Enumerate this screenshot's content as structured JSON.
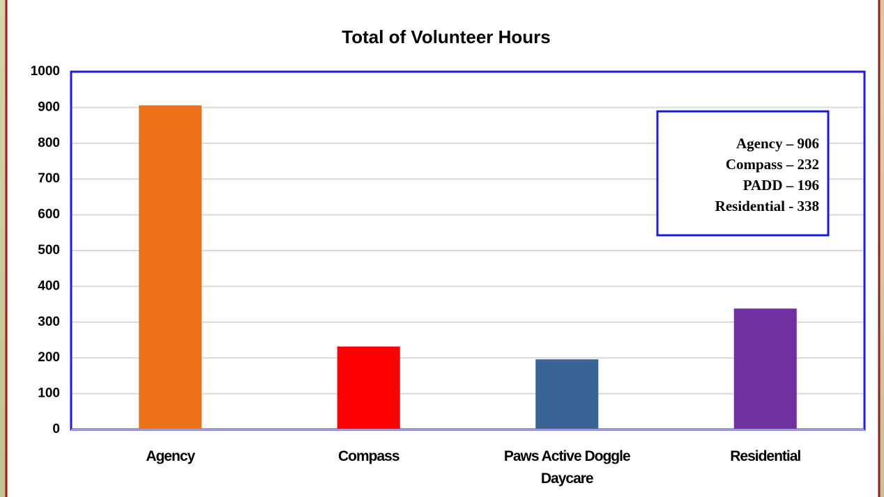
{
  "chart_data": {
    "type": "bar",
    "title": "Total of Volunteer Hours",
    "categories": [
      "Agency",
      "Compass",
      "Paws Active Doggle Daycare",
      "Residential"
    ],
    "values": [
      906,
      232,
      196,
      338
    ],
    "colors": [
      "#ed7117",
      "#ff0000",
      "#3a6496",
      "#7030a0"
    ],
    "ylim": [
      0,
      1000
    ],
    "yticks": [
      0,
      100,
      200,
      300,
      400,
      500,
      600,
      700,
      800,
      900,
      1000
    ],
    "grid": true,
    "annotations": [
      "Agency – 906",
      "Compass – 232",
      "PADD – 196",
      "Residential - 338"
    ]
  }
}
